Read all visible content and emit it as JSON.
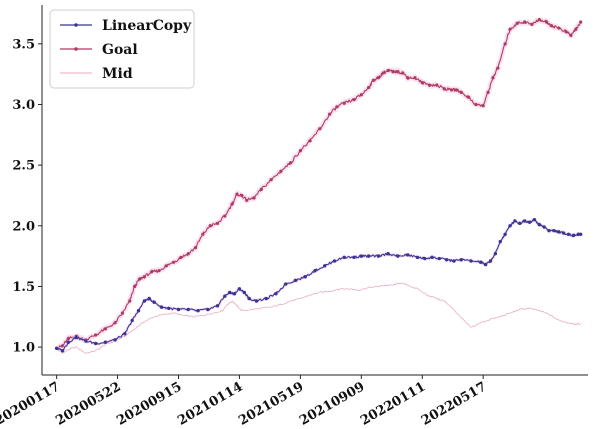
{
  "chart_data": {
    "type": "line",
    "title": "",
    "xlabel": "",
    "ylabel": "",
    "grid": false,
    "legend_position": "top-left",
    "ylim": [
      0.77,
      3.82
    ],
    "yticks": [
      1.0,
      1.5,
      2.0,
      2.5,
      3.0,
      3.5
    ],
    "ytick_labels": [
      "1.0",
      "1.5",
      "2.0",
      "2.5",
      "3.0",
      "3.5"
    ],
    "x_range": [
      -30,
      1090
    ],
    "xticks": [
      0,
      125,
      250,
      375,
      500,
      625,
      750,
      875
    ],
    "xtick_labels": [
      "20200117",
      "20200522",
      "20200915",
      "20210114",
      "20210519",
      "20210909",
      "20220111",
      "20220517"
    ],
    "series": [
      {
        "name": "LinearCopy",
        "color": "#3b3596",
        "x": [
          0,
          12,
          24,
          40,
          60,
          80,
          100,
          120,
          140,
          155,
          168,
          180,
          190,
          200,
          215,
          230,
          250,
          270,
          290,
          310,
          330,
          345,
          355,
          365,
          375,
          385,
          395,
          410,
          430,
          450,
          470,
          490,
          510,
          530,
          550,
          570,
          590,
          610,
          625,
          640,
          660,
          680,
          700,
          720,
          740,
          755,
          770,
          785,
          800,
          815,
          830,
          850,
          870,
          880,
          890,
          900,
          910,
          920,
          930,
          940,
          950,
          960,
          970,
          980,
          990,
          1000,
          1010,
          1020,
          1030,
          1040,
          1050,
          1060,
          1070,
          1075
        ],
        "values": [
          0.99,
          0.97,
          1.04,
          1.08,
          1.05,
          1.03,
          1.04,
          1.06,
          1.11,
          1.22,
          1.3,
          1.38,
          1.4,
          1.37,
          1.33,
          1.32,
          1.31,
          1.31,
          1.3,
          1.31,
          1.34,
          1.42,
          1.45,
          1.44,
          1.48,
          1.45,
          1.4,
          1.38,
          1.4,
          1.44,
          1.52,
          1.55,
          1.58,
          1.63,
          1.67,
          1.71,
          1.74,
          1.74,
          1.75,
          1.75,
          1.75,
          1.77,
          1.75,
          1.76,
          1.74,
          1.73,
          1.74,
          1.73,
          1.72,
          1.71,
          1.72,
          1.71,
          1.7,
          1.68,
          1.71,
          1.77,
          1.87,
          1.93,
          2.0,
          2.04,
          2.02,
          2.04,
          2.03,
          2.05,
          2.01,
          1.99,
          1.96,
          1.96,
          1.95,
          1.94,
          1.93,
          1.92,
          1.93,
          1.93
        ]
      },
      {
        "name": "Goal",
        "color": "#b03a62",
        "x": [
          0,
          12,
          24,
          40,
          60,
          80,
          100,
          120,
          135,
          150,
          160,
          170,
          180,
          195,
          210,
          225,
          240,
          255,
          270,
          285,
          300,
          315,
          330,
          345,
          360,
          370,
          380,
          390,
          405,
          420,
          440,
          460,
          480,
          500,
          520,
          540,
          560,
          575,
          590,
          610,
          625,
          640,
          650,
          660,
          670,
          680,
          690,
          700,
          710,
          720,
          735,
          750,
          765,
          780,
          795,
          810,
          820,
          830,
          845,
          860,
          875,
          885,
          895,
          905,
          920,
          930,
          945,
          960,
          975,
          990,
          1005,
          1015,
          1030,
          1045,
          1055,
          1065,
          1075
        ],
        "values": [
          0.99,
          1.01,
          1.07,
          1.09,
          1.06,
          1.1,
          1.15,
          1.2,
          1.28,
          1.38,
          1.5,
          1.56,
          1.58,
          1.62,
          1.63,
          1.67,
          1.7,
          1.74,
          1.77,
          1.82,
          1.93,
          2.0,
          2.02,
          2.08,
          2.18,
          2.26,
          2.25,
          2.21,
          2.23,
          2.3,
          2.38,
          2.45,
          2.52,
          2.62,
          2.7,
          2.8,
          2.92,
          2.98,
          3.01,
          3.04,
          3.08,
          3.14,
          3.2,
          3.22,
          3.26,
          3.28,
          3.27,
          3.27,
          3.26,
          3.22,
          3.22,
          3.18,
          3.16,
          3.16,
          3.13,
          3.12,
          3.12,
          3.1,
          3.06,
          3.0,
          2.99,
          3.1,
          3.22,
          3.3,
          3.5,
          3.62,
          3.67,
          3.68,
          3.66,
          3.7,
          3.68,
          3.65,
          3.63,
          3.6,
          3.57,
          3.62,
          3.68
        ]
      },
      {
        "name": "Mid",
        "color": "#e8a9c0",
        "x": [
          0,
          12,
          24,
          40,
          60,
          80,
          100,
          120,
          140,
          160,
          180,
          200,
          220,
          240,
          260,
          280,
          300,
          320,
          340,
          350,
          360,
          370,
          380,
          400,
          420,
          440,
          460,
          480,
          500,
          520,
          540,
          560,
          580,
          600,
          620,
          640,
          660,
          675,
          690,
          705,
          720,
          740,
          760,
          780,
          795,
          810,
          830,
          850,
          870,
          890,
          910,
          930,
          950,
          970,
          990,
          1010,
          1030,
          1050,
          1065,
          1075
        ],
        "values": [
          0.99,
          0.95,
          0.98,
          1.0,
          0.95,
          0.97,
          1.02,
          1.05,
          1.09,
          1.15,
          1.21,
          1.25,
          1.27,
          1.28,
          1.26,
          1.25,
          1.26,
          1.28,
          1.3,
          1.35,
          1.38,
          1.34,
          1.3,
          1.31,
          1.32,
          1.33,
          1.35,
          1.38,
          1.4,
          1.43,
          1.45,
          1.46,
          1.48,
          1.48,
          1.47,
          1.49,
          1.5,
          1.51,
          1.51,
          1.53,
          1.51,
          1.48,
          1.43,
          1.4,
          1.38,
          1.33,
          1.24,
          1.16,
          1.2,
          1.23,
          1.25,
          1.28,
          1.31,
          1.32,
          1.3,
          1.27,
          1.22,
          1.2,
          1.19,
          1.19
        ]
      }
    ]
  }
}
